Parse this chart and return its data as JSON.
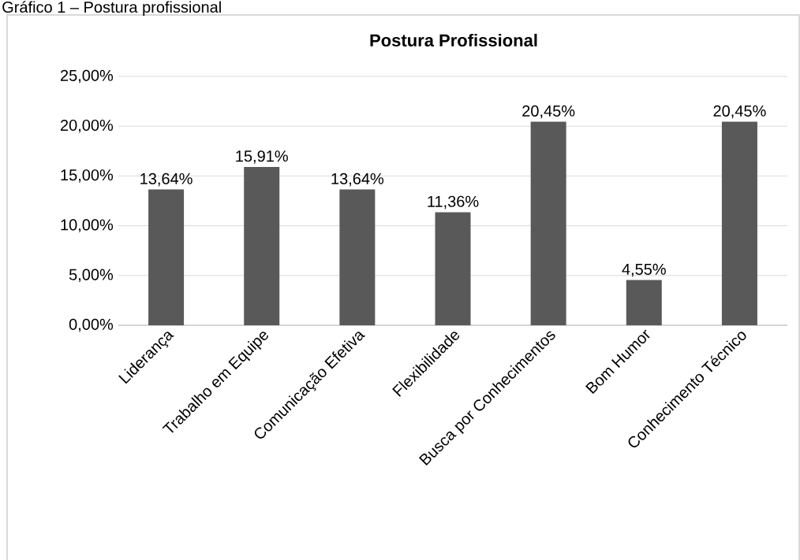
{
  "chart_data": {
    "type": "bar",
    "title": "Postura Profissional",
    "annotations": [
      "Gráfico 1 – Postura profissional"
    ],
    "categories": [
      "Liderança",
      "Trabalho em Equipe",
      "Comunicação Efetiva",
      "Flexibilidade",
      "Busca por Conhecimentos",
      "Bom Humor",
      "Conhecimento Técnico"
    ],
    "values": [
      13.64,
      15.91,
      13.64,
      11.36,
      20.45,
      4.55,
      20.45
    ],
    "value_labels": [
      "13,64%",
      "15,91%",
      "13,64%",
      "11,36%",
      "20,45%",
      "4,55%",
      "20,45%"
    ],
    "color": "#595959",
    "ylim": [
      0,
      25
    ],
    "yticks": [
      {
        "value": 0,
        "label": "0,00%"
      },
      {
        "value": 5,
        "label": "5,00%"
      },
      {
        "value": 10,
        "label": "10,00%"
      },
      {
        "value": 15,
        "label": "15,00%"
      },
      {
        "value": 20,
        "label": "20,00%"
      },
      {
        "value": 25,
        "label": "25,00%"
      }
    ],
    "grid": "y"
  }
}
